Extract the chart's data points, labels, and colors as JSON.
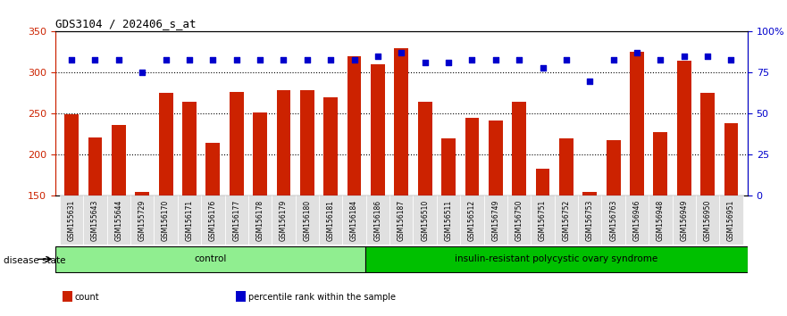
{
  "title": "GDS3104 / 202406_s_at",
  "samples": [
    "GSM155631",
    "GSM155643",
    "GSM155644",
    "GSM155729",
    "GSM156170",
    "GSM156171",
    "GSM156176",
    "GSM156177",
    "GSM156178",
    "GSM156179",
    "GSM156180",
    "GSM156181",
    "GSM156184",
    "GSM156186",
    "GSM156187",
    "GSM156510",
    "GSM156511",
    "GSM156512",
    "GSM156749",
    "GSM156750",
    "GSM156751",
    "GSM156752",
    "GSM156753",
    "GSM156763",
    "GSM156946",
    "GSM156948",
    "GSM156949",
    "GSM156950",
    "GSM156951"
  ],
  "bar_values": [
    249,
    221,
    236,
    155,
    275,
    265,
    215,
    277,
    252,
    279,
    279,
    270,
    320,
    310,
    330,
    265,
    220,
    245,
    242,
    265,
    183,
    220,
    155,
    218,
    325,
    228,
    315,
    275,
    238
  ],
  "dot_values": [
    83,
    83,
    83,
    75,
    83,
    83,
    83,
    83,
    83,
    83,
    83,
    83,
    83,
    85,
    87,
    81,
    81,
    83,
    83,
    83,
    78,
    83,
    70,
    83,
    87,
    83,
    85,
    85,
    83
  ],
  "group_labels": [
    "control",
    "insulin-resistant polycystic ovary syndrome"
  ],
  "group_sizes": [
    13,
    16
  ],
  "group_colors": [
    "#90ee90",
    "#00c000"
  ],
  "bar_color": "#cc2200",
  "dot_color": "#0000cc",
  "ylim_left": [
    150,
    350
  ],
  "ylim_right": [
    0,
    100
  ],
  "yticks_left": [
    150,
    200,
    250,
    300,
    350
  ],
  "yticks_right": [
    0,
    25,
    50,
    75,
    100
  ],
  "ytick_labels_right": [
    "0",
    "25",
    "50",
    "75",
    "100%"
  ],
  "grid_values": [
    200,
    250,
    300
  ],
  "background_color": "#ffffff",
  "legend_items": [
    "count",
    "percentile rank within the sample"
  ],
  "disease_state_label": "disease state"
}
